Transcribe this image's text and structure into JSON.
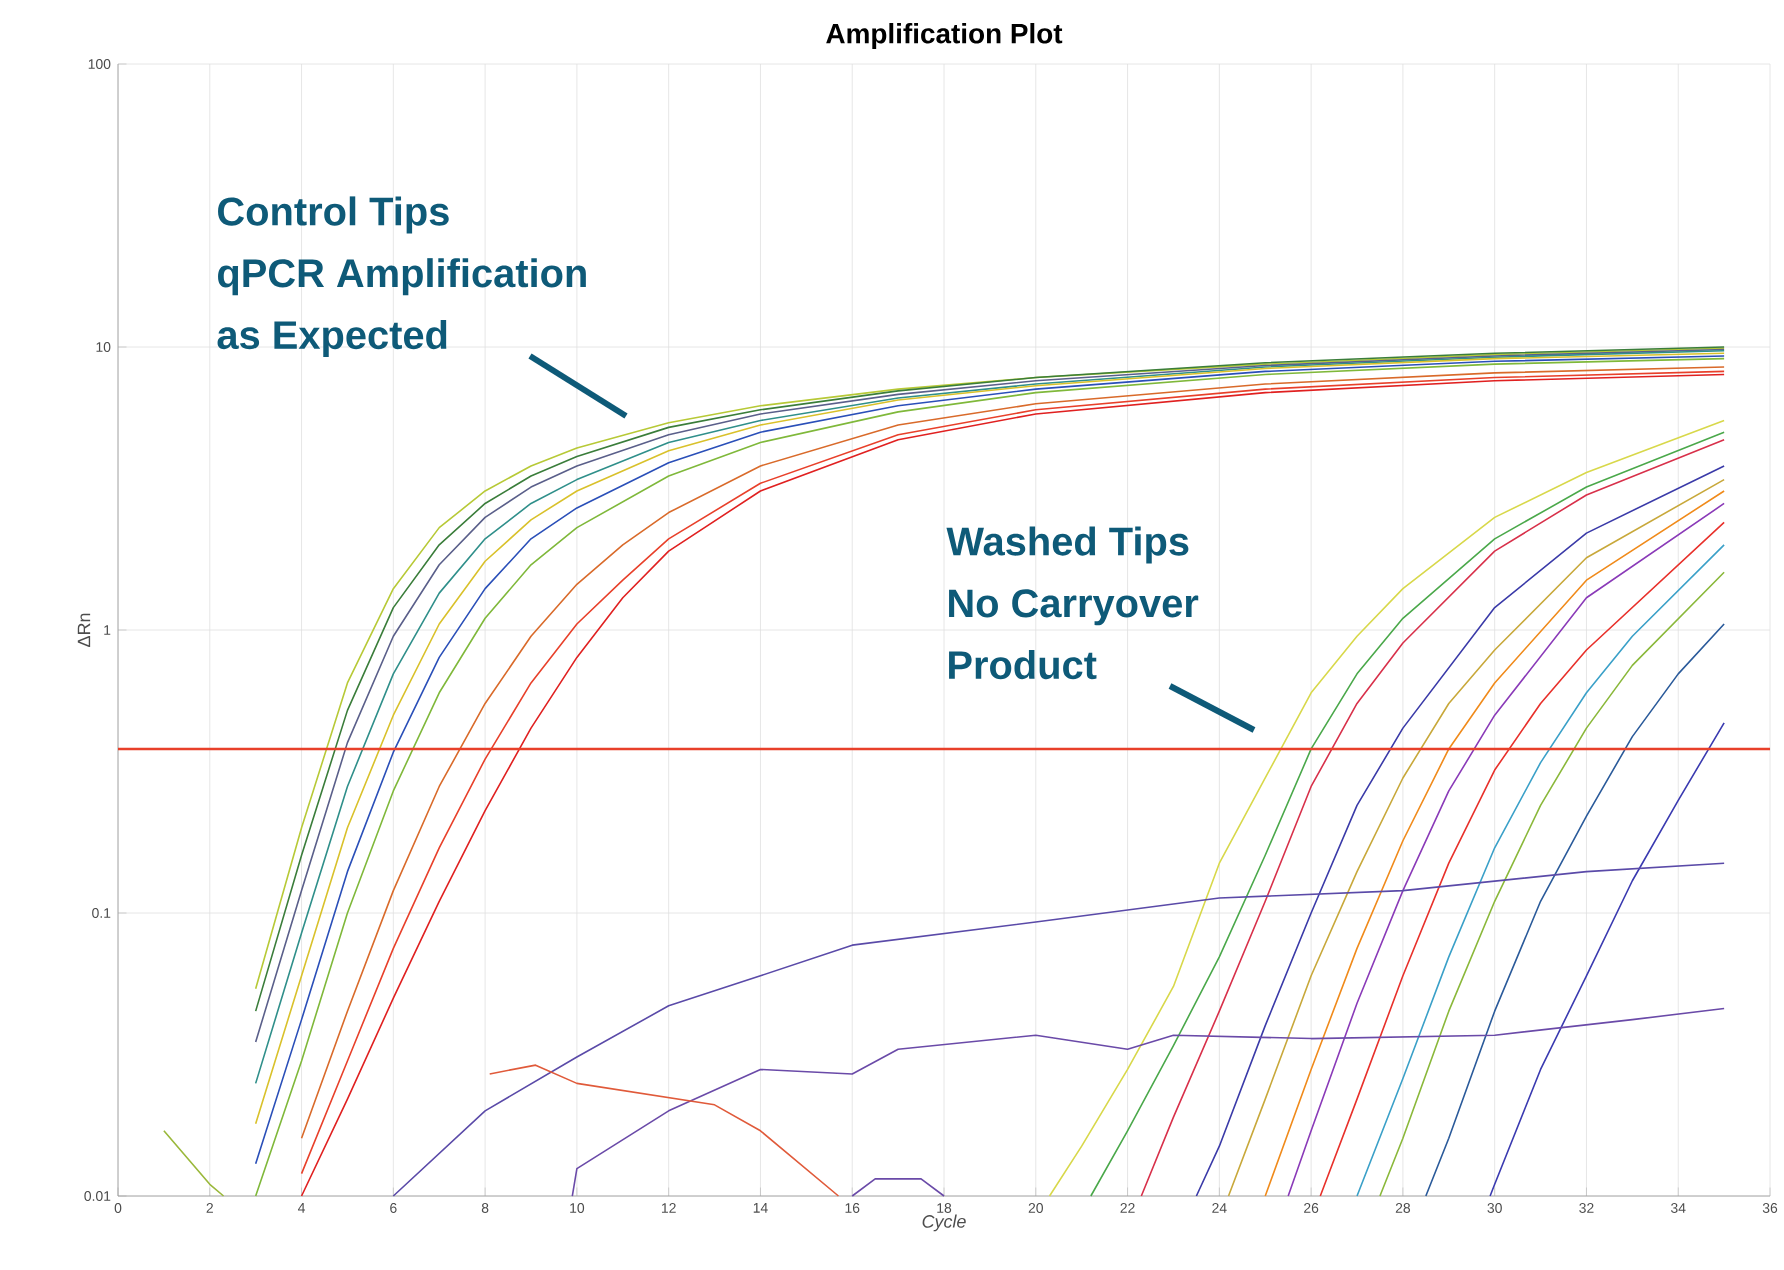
{
  "chart_data": {
    "type": "line",
    "title": "Amplification Plot",
    "xlabel": "Cycle",
    "ylabel": "ΔRn",
    "log": "y",
    "grid": true,
    "xlim": [
      0,
      36
    ],
    "ylim": [
      0.01,
      100
    ],
    "xticks": [
      0,
      2,
      4,
      6,
      8,
      10,
      12,
      14,
      16,
      18,
      20,
      22,
      24,
      26,
      28,
      30,
      32,
      34,
      36
    ],
    "yticks": [
      0.01,
      0.1,
      1,
      10,
      100
    ],
    "annotations": [
      "Control Tips\nqPCR Amplification\nas Expected",
      "Washed Tips\nNo Carryover\nProduct"
    ],
    "ref_lines": [
      {
        "axis": "y",
        "value": 0.38,
        "color": "#e8402a"
      }
    ],
    "series": [
      {
        "color": "#b7c936",
        "x": [
          3,
          4,
          5,
          6,
          7,
          8,
          9,
          10,
          12,
          14,
          17,
          20,
          25,
          30,
          35
        ],
        "values": [
          0.054,
          0.2,
          0.65,
          1.4,
          2.3,
          3.1,
          3.8,
          4.4,
          5.4,
          6.2,
          7.1,
          7.8,
          8.7,
          9.4,
          9.9
        ]
      },
      {
        "color": "#3a7d3a",
        "x": [
          3,
          4,
          5,
          6,
          7,
          8,
          9,
          10,
          12,
          14,
          17,
          20,
          25,
          30,
          35
        ],
        "values": [
          0.045,
          0.16,
          0.52,
          1.2,
          2.0,
          2.8,
          3.5,
          4.1,
          5.2,
          6.0,
          7.0,
          7.8,
          8.8,
          9.5,
          10.0
        ]
      },
      {
        "color": "#5a5f8a",
        "x": [
          3,
          4,
          5,
          6,
          7,
          8,
          9,
          10,
          12,
          14,
          17,
          20,
          25,
          30,
          35
        ],
        "values": [
          0.035,
          0.12,
          0.4,
          0.95,
          1.7,
          2.5,
          3.2,
          3.8,
          4.9,
          5.8,
          6.8,
          7.6,
          8.6,
          9.3,
          9.8
        ]
      },
      {
        "color": "#2f8f8a",
        "x": [
          3,
          4,
          5,
          6,
          7,
          8,
          9,
          10,
          12,
          14,
          17,
          20,
          25,
          30,
          35
        ],
        "values": [
          0.025,
          0.085,
          0.28,
          0.7,
          1.35,
          2.1,
          2.8,
          3.4,
          4.6,
          5.5,
          6.6,
          7.4,
          8.5,
          9.2,
          9.7
        ]
      },
      {
        "color": "#d9c12a",
        "x": [
          3,
          4,
          5,
          6,
          7,
          8,
          9,
          10,
          12,
          14,
          17,
          20,
          25,
          30,
          35
        ],
        "values": [
          0.018,
          0.06,
          0.2,
          0.5,
          1.05,
          1.75,
          2.45,
          3.1,
          4.3,
          5.3,
          6.5,
          7.3,
          8.4,
          9.1,
          9.5
        ]
      },
      {
        "color": "#2a4fb8",
        "x": [
          3,
          4,
          5,
          6,
          7,
          8,
          9,
          10,
          12,
          14,
          17,
          20,
          25,
          30,
          35
        ],
        "values": [
          0.013,
          0.042,
          0.14,
          0.37,
          0.8,
          1.4,
          2.1,
          2.7,
          3.9,
          5.0,
          6.2,
          7.1,
          8.2,
          8.9,
          9.3
        ]
      },
      {
        "color": "#7fb83a",
        "x": [
          3,
          4,
          5,
          6,
          7,
          8,
          9,
          10,
          12,
          14,
          17,
          20,
          25,
          30,
          35
        ],
        "values": [
          0.01,
          0.03,
          0.1,
          0.27,
          0.6,
          1.1,
          1.7,
          2.3,
          3.5,
          4.6,
          5.9,
          6.9,
          8.0,
          8.7,
          9.1
        ]
      },
      {
        "color": "#d96a2a",
        "x": [
          4,
          5,
          6,
          7,
          8,
          9,
          10,
          11,
          12,
          14,
          17,
          20,
          25,
          30,
          35
        ],
        "values": [
          0.016,
          0.045,
          0.12,
          0.28,
          0.55,
          0.95,
          1.45,
          2.0,
          2.6,
          3.8,
          5.3,
          6.3,
          7.4,
          8.1,
          8.5
        ]
      },
      {
        "color": "#e8402a",
        "x": [
          4,
          5,
          6,
          7,
          8,
          9,
          10,
          11,
          12,
          14,
          17,
          20,
          25,
          30,
          35
        ],
        "values": [
          0.012,
          0.03,
          0.075,
          0.17,
          0.35,
          0.65,
          1.05,
          1.5,
          2.1,
          3.3,
          4.9,
          6.0,
          7.1,
          7.8,
          8.2
        ]
      },
      {
        "color": "#e02020",
        "x": [
          4,
          5,
          6,
          7,
          8,
          9,
          10,
          11,
          12,
          14,
          17,
          20,
          25,
          30,
          35
        ],
        "values": [
          0.01,
          0.022,
          0.05,
          0.11,
          0.23,
          0.45,
          0.8,
          1.3,
          1.9,
          3.1,
          4.7,
          5.8,
          6.9,
          7.6,
          8.0
        ]
      },
      {
        "color": "#d8d84a",
        "x": [
          20.3,
          21,
          22,
          23,
          24,
          25,
          26,
          27,
          28,
          30,
          32,
          35
        ],
        "values": [
          0.01,
          0.015,
          0.028,
          0.055,
          0.15,
          0.3,
          0.6,
          0.95,
          1.4,
          2.5,
          3.6,
          5.5
        ]
      },
      {
        "color": "#4aa84a",
        "x": [
          21.2,
          22,
          23,
          24,
          25,
          26,
          27,
          28,
          30,
          32,
          35
        ],
        "values": [
          0.01,
          0.017,
          0.034,
          0.07,
          0.16,
          0.38,
          0.7,
          1.1,
          2.1,
          3.2,
          5.0
        ]
      },
      {
        "color": "#d8304a",
        "x": [
          22.3,
          23,
          24,
          25,
          26,
          27,
          28,
          30,
          32,
          35
        ],
        "values": [
          0.01,
          0.019,
          0.045,
          0.11,
          0.28,
          0.55,
          0.9,
          1.9,
          3.0,
          4.7
        ]
      },
      {
        "color": "#3a3aa8",
        "x": [
          23.5,
          24,
          25,
          26,
          27,
          28,
          30,
          32,
          35
        ],
        "values": [
          0.01,
          0.015,
          0.04,
          0.1,
          0.24,
          0.45,
          1.2,
          2.2,
          3.8
        ]
      },
      {
        "color": "#c8a83a",
        "x": [
          24.2,
          25,
          26,
          27,
          28,
          29,
          30,
          32,
          35
        ],
        "values": [
          0.01,
          0.022,
          0.06,
          0.14,
          0.3,
          0.55,
          0.85,
          1.8,
          3.4
        ]
      },
      {
        "color": "#f08a1a",
        "x": [
          25,
          26,
          27,
          28,
          29,
          30,
          32,
          35
        ],
        "values": [
          0.01,
          0.028,
          0.075,
          0.18,
          0.38,
          0.65,
          1.5,
          3.1
        ]
      },
      {
        "color": "#8a3ab8",
        "x": [
          25.5,
          26,
          27,
          28,
          29,
          30,
          32,
          35
        ],
        "values": [
          0.01,
          0.017,
          0.048,
          0.12,
          0.27,
          0.5,
          1.3,
          2.8
        ]
      },
      {
        "color": "#e8302a",
        "x": [
          26.2,
          27,
          28,
          29,
          30,
          31,
          32,
          35
        ],
        "values": [
          0.01,
          0.022,
          0.06,
          0.15,
          0.32,
          0.55,
          0.85,
          2.4
        ]
      },
      {
        "color": "#3aa0c8",
        "x": [
          27,
          28,
          29,
          30,
          31,
          32,
          33,
          35
        ],
        "values": [
          0.01,
          0.026,
          0.07,
          0.17,
          0.34,
          0.6,
          0.95,
          2.0
        ]
      },
      {
        "color": "#8ab83a",
        "x": [
          27.5,
          28,
          29,
          30,
          31,
          32,
          33,
          35
        ],
        "values": [
          0.01,
          0.016,
          0.045,
          0.11,
          0.24,
          0.45,
          0.75,
          1.6
        ]
      },
      {
        "color": "#2a5a9a",
        "x": [
          28.5,
          29,
          30,
          31,
          32,
          33,
          34,
          35
        ],
        "values": [
          0.01,
          0.016,
          0.045,
          0.11,
          0.22,
          0.42,
          0.7,
          1.05
        ]
      },
      {
        "color": "#3a3ab0",
        "x": [
          29.9,
          30,
          31,
          32,
          33,
          34,
          35
        ],
        "values": [
          0.01,
          0.011,
          0.028,
          0.06,
          0.13,
          0.25,
          0.47
        ]
      },
      {
        "color": "#5a4aa8",
        "x": [
          6,
          8,
          10,
          12,
          14,
          16,
          20,
          24,
          28,
          32,
          35
        ],
        "values": [
          0.01,
          0.02,
          0.031,
          0.047,
          0.06,
          0.077,
          0.093,
          0.113,
          0.12,
          0.14,
          0.15
        ]
      },
      {
        "color": "#6a4aa8",
        "x": [
          9.9,
          10,
          12,
          14,
          16,
          17,
          20,
          22,
          23,
          26,
          30,
          33,
          35
        ],
        "values": [
          0.01,
          0.0125,
          0.02,
          0.028,
          0.027,
          0.033,
          0.037,
          0.033,
          0.037,
          0.036,
          0.037,
          0.042,
          0.046
        ]
      },
      {
        "color": "#e05a3a",
        "x": [
          8.1,
          9.1,
          10,
          13,
          14,
          15.7
        ],
        "values": [
          0.027,
          0.029,
          0.025,
          0.021,
          0.017,
          0.01
        ]
      },
      {
        "color": "#9ab83a",
        "x": [
          1,
          2,
          2.3
        ],
        "values": [
          0.017,
          0.011,
          0.01
        ]
      },
      {
        "color": "#6a4aa8",
        "x": [
          16,
          16.5,
          17.5,
          18
        ],
        "values": [
          0.01,
          0.0115,
          0.0115,
          0.01
        ]
      }
    ]
  }
}
